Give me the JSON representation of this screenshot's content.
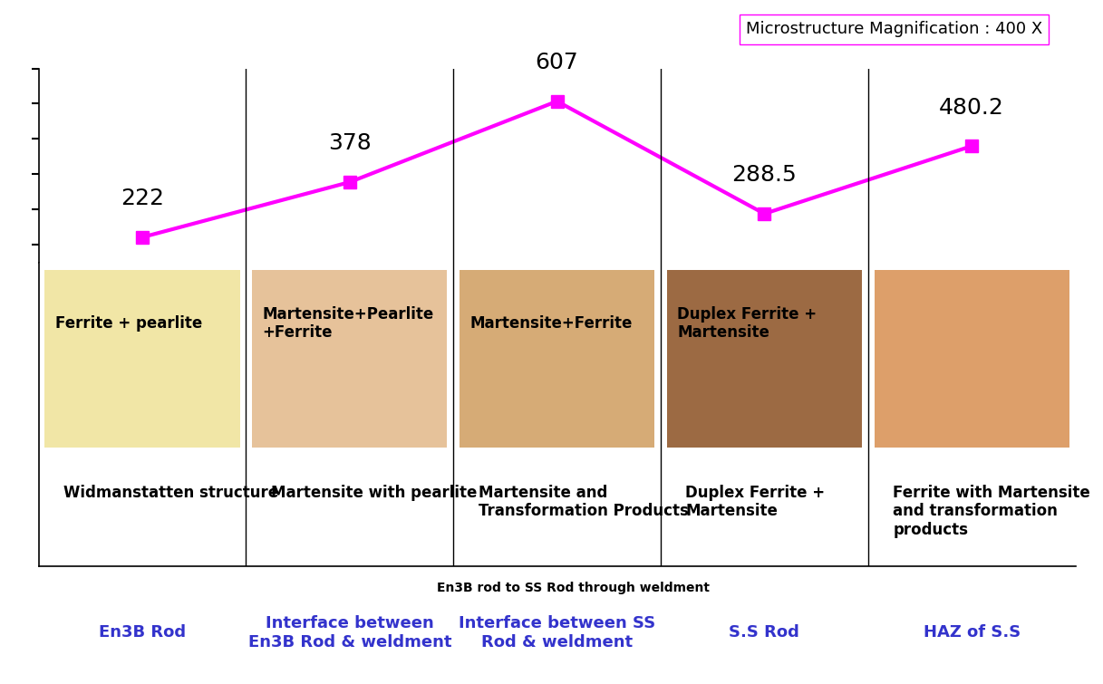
{
  "chart_data": {
    "type": "line",
    "title": "Microstructure Magnification : 400 X",
    "xlabel": "En3B rod to SS Rod through weldment",
    "categories": [
      "En3B Rod",
      "Interface between En3B Rod & weldment",
      "Interface between SS Rod & weldment",
      "S.S Rod",
      "HAZ of S.S"
    ],
    "values": [
      222,
      378,
      607,
      288.5,
      480.2
    ],
    "color": "#ff00ff",
    "marker": "square",
    "data_labels": true,
    "ylim": [
      150,
      700
    ],
    "yticks": [
      200,
      300,
      400,
      500,
      600,
      700
    ],
    "tick_labels": false,
    "microstructure_phases": [
      "Ferrite + pearlite",
      "Martensite+Pearlite +Ferrite",
      "Martensite+Ferrite",
      "Duplex Ferrite + Martensite",
      null
    ],
    "structure_descriptions": [
      "Widmanstatten structure",
      "Martensite with pearlite",
      "Martensite and Transformation Products",
      "Duplex Ferrite + Martensite",
      "Ferrite with Martensite and transformation products"
    ]
  }
}
